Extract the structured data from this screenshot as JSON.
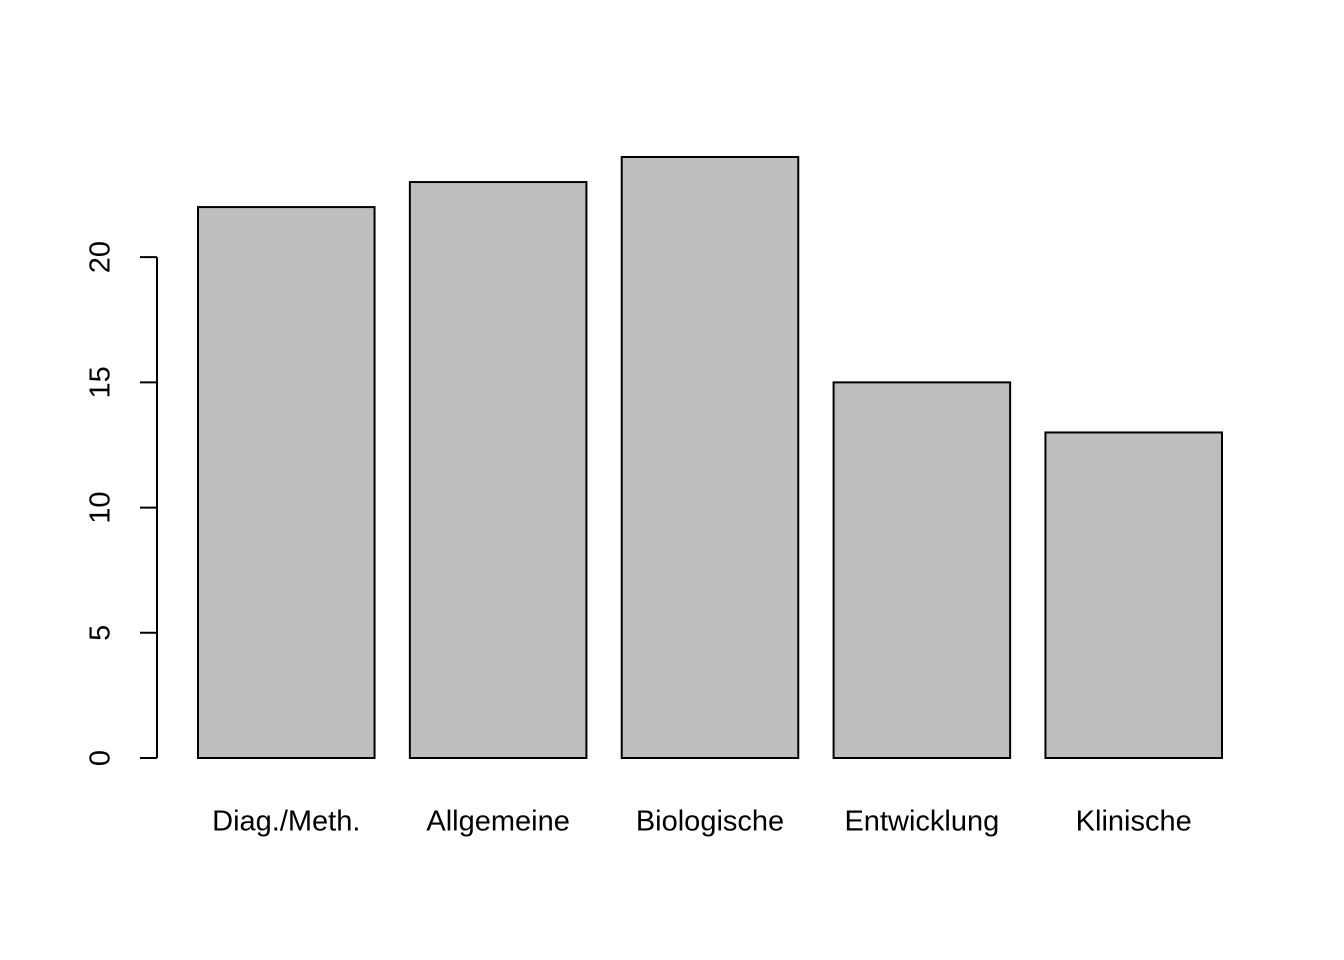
{
  "chart_data": {
    "type": "bar",
    "categories": [
      "Diag./Meth.",
      "Allgemeine",
      "Biologische",
      "Entwicklung",
      "Klinische"
    ],
    "values": [
      22,
      23,
      24,
      15,
      13
    ],
    "color": "#bebebe",
    "ylim": [
      0,
      24
    ],
    "yticks": [
      0,
      5,
      10,
      15,
      20
    ],
    "grid": false
  }
}
